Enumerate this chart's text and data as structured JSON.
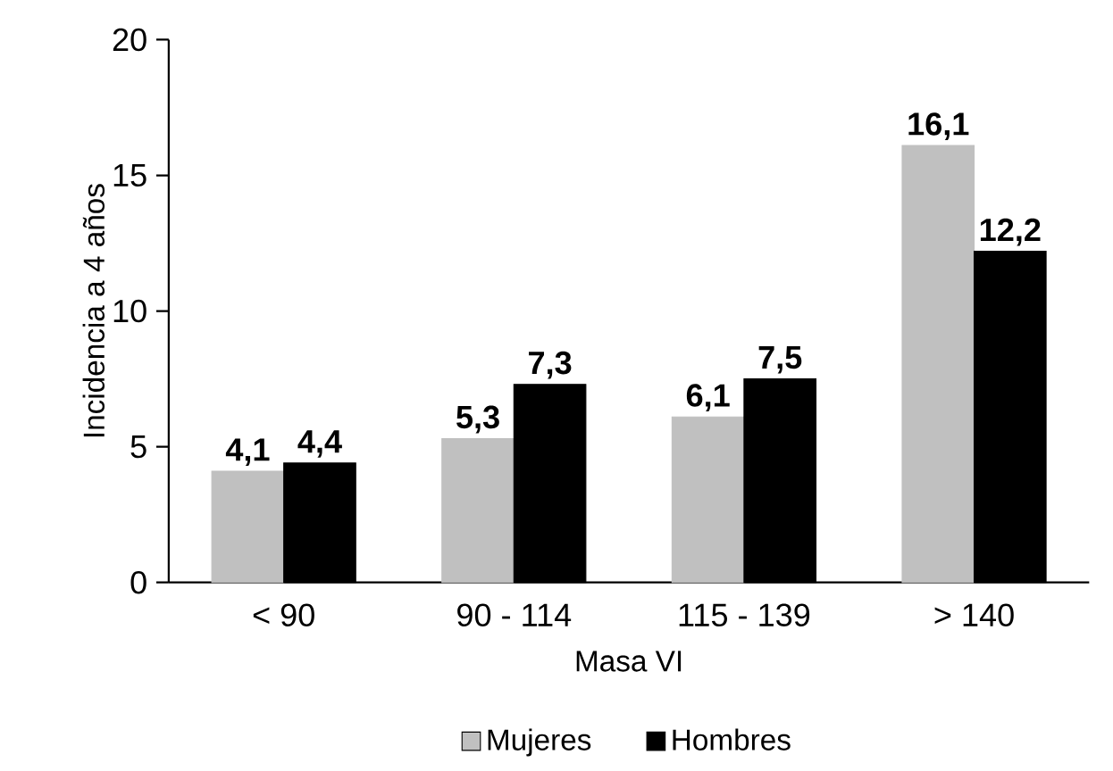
{
  "chart_data": {
    "type": "bar",
    "xlabel": "Masa VI",
    "ylabel": "Incidencia a 4 años",
    "categories": [
      "< 90",
      "90 - 114",
      "115 - 139",
      "> 140"
    ],
    "series": [
      {
        "name": "Mujeres",
        "color": "#c0c0c0",
        "values": [
          4.1,
          5.3,
          6.1,
          16.1
        ],
        "value_labels": [
          "4,1",
          "5,3",
          "6,1",
          "16,1"
        ]
      },
      {
        "name": "Hombres",
        "color": "#000000",
        "values": [
          4.4,
          7.3,
          7.5,
          12.2
        ],
        "value_labels": [
          "4,4",
          "7,3",
          "7,5",
          "12,2"
        ]
      }
    ],
    "ylim": [
      0,
      20
    ],
    "yticks": [
      0,
      5,
      10,
      15,
      20
    ],
    "legend": "bottom"
  }
}
